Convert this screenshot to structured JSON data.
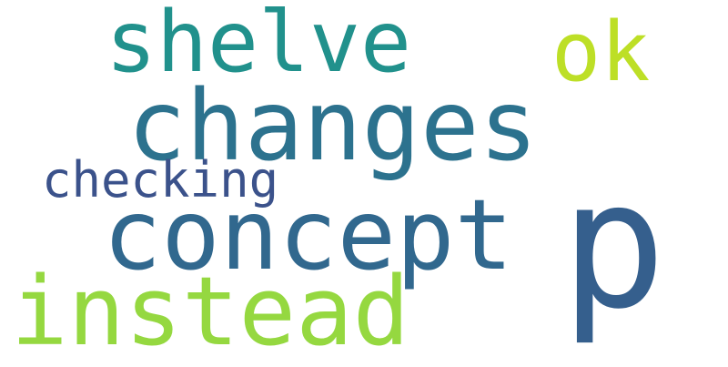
{
  "words": {
    "shelve": {
      "text": "shelve",
      "color": "#21918c"
    },
    "ok": {
      "text": "ok",
      "color": "#bddf26"
    },
    "changes": {
      "text": "changes",
      "color": "#2c728e"
    },
    "checking": {
      "text": "checking",
      "color": "#3b528b"
    },
    "concept": {
      "text": "concept",
      "color": "#31688e"
    },
    "p": {
      "text": "p",
      "color": "#355f8d"
    },
    "instead": {
      "text": "instead",
      "color": "#95d840"
    }
  }
}
